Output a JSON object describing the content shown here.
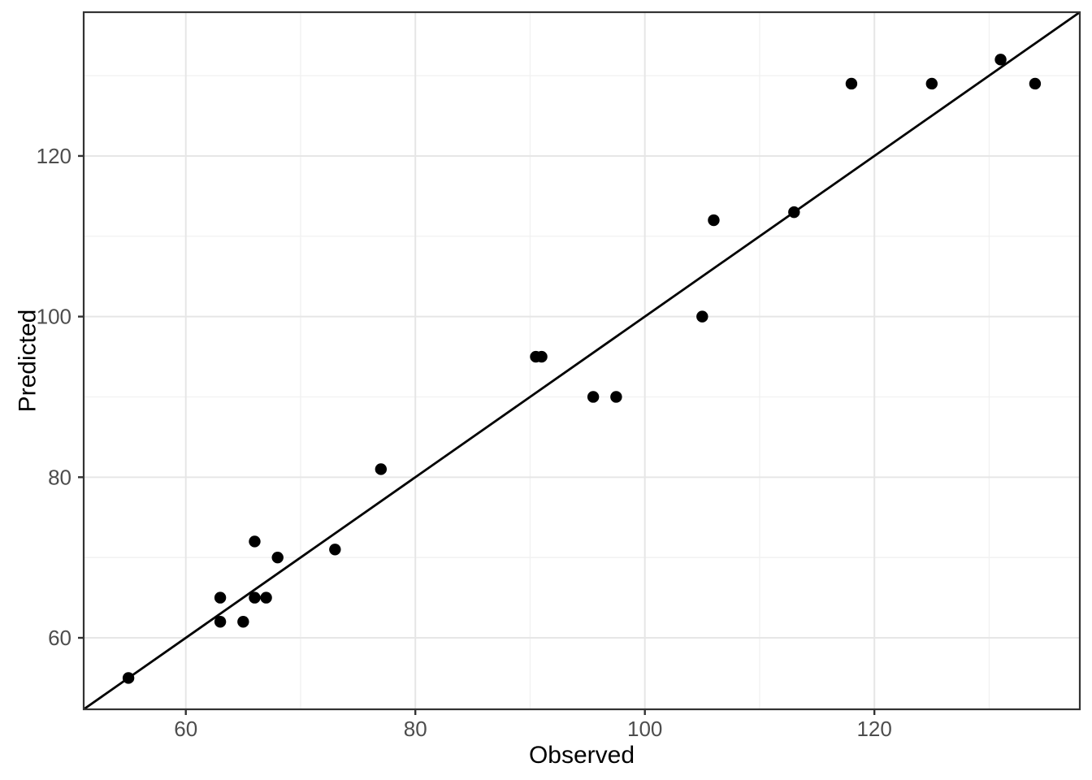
{
  "chart_data": {
    "type": "scatter",
    "title": "",
    "xlabel": "Observed",
    "ylabel": "Predicted",
    "xlim": [
      51.1,
      137.9
    ],
    "ylim": [
      51.1,
      137.9
    ],
    "x_major_ticks": [
      60,
      80,
      100,
      120
    ],
    "x_tick_labels": [
      "60",
      "80",
      "100",
      "120"
    ],
    "x_minor_gridlines": [
      70,
      90,
      110,
      130
    ],
    "y_major_ticks": [
      60,
      80,
      100,
      120
    ],
    "y_tick_labels": [
      "60",
      "80",
      "100",
      "120"
    ],
    "y_minor_gridlines": [
      70,
      90,
      110,
      130
    ],
    "grid": "major-and-minor",
    "legend": "none",
    "abline": {
      "slope": 1,
      "intercept": 0
    },
    "points": [
      {
        "x": 55,
        "y": 55
      },
      {
        "x": 63,
        "y": 62
      },
      {
        "x": 63,
        "y": 65
      },
      {
        "x": 65,
        "y": 62
      },
      {
        "x": 66,
        "y": 65
      },
      {
        "x": 67,
        "y": 65
      },
      {
        "x": 66,
        "y": 72
      },
      {
        "x": 68,
        "y": 70
      },
      {
        "x": 73,
        "y": 71
      },
      {
        "x": 77,
        "y": 81
      },
      {
        "x": 90.5,
        "y": 95
      },
      {
        "x": 91,
        "y": 95
      },
      {
        "x": 95.5,
        "y": 90
      },
      {
        "x": 97.5,
        "y": 90
      },
      {
        "x": 105,
        "y": 100
      },
      {
        "x": 106,
        "y": 112
      },
      {
        "x": 113,
        "y": 113
      },
      {
        "x": 118,
        "y": 129
      },
      {
        "x": 125,
        "y": 129
      },
      {
        "x": 131,
        "y": 132
      },
      {
        "x": 134,
        "y": 129
      }
    ],
    "colors": {
      "point": "#000000",
      "abline": "#000000",
      "panel_border": "#333333",
      "grid_major": "#e6e6e6",
      "grid_minor": "#f1f1f1",
      "tick_mark": "#333333",
      "tick_label": "#4d4d4d",
      "axis_title": "#000000",
      "background": "#ffffff"
    }
  }
}
